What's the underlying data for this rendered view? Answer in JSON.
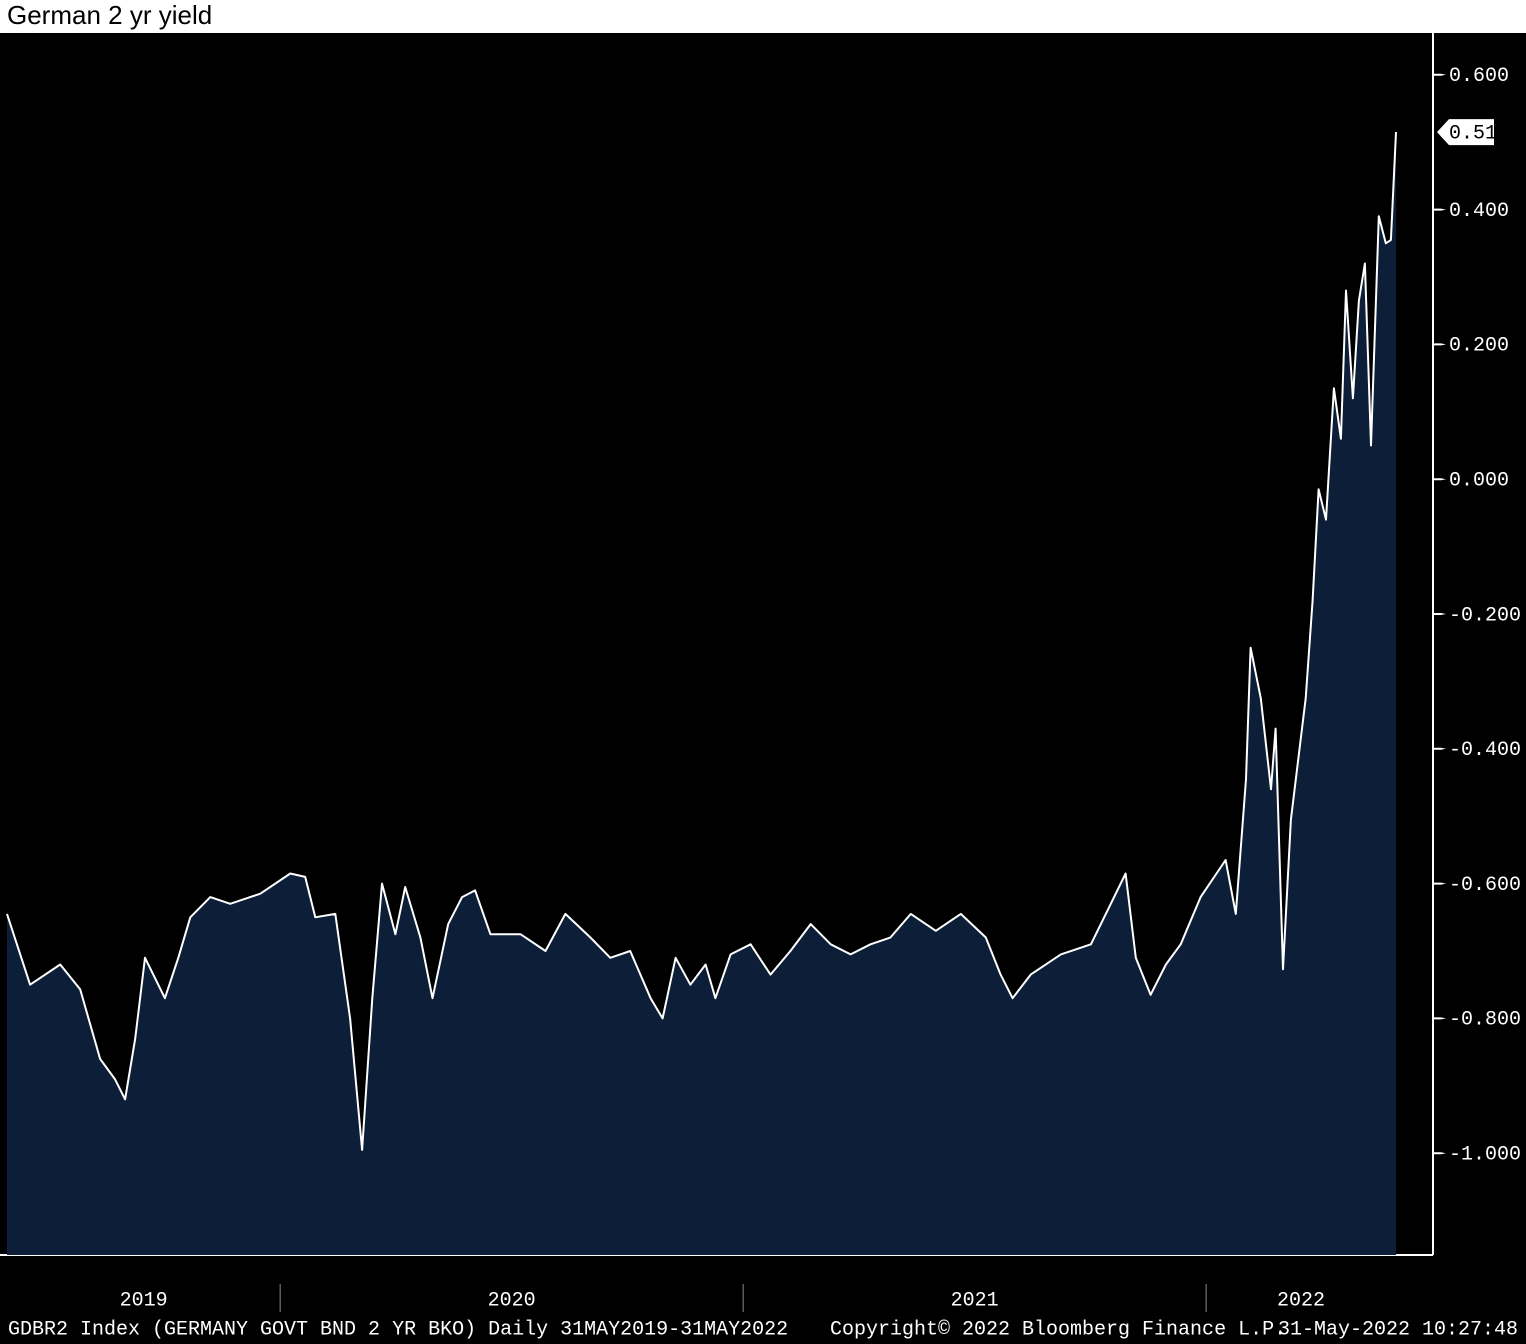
{
  "chart_data": {
    "type": "area",
    "title": "German 2 yr yield",
    "footer": [
      "GDBR2 Index (GERMANY GOVT BND 2 YR BKO)  Daily 31MAY2019-31MAY2022",
      "Copyright© 2022 Bloomberg Finance L.P.",
      "31-May-2022 10:27:48"
    ],
    "x": [
      2019.41,
      2019.46,
      2019.525,
      2019.568,
      2019.611,
      2019.643,
      2019.665,
      2019.687,
      2019.708,
      2019.751,
      2019.78,
      2019.806,
      2019.849,
      2019.892,
      2019.957,
      2020.022,
      2020.054,
      2020.076,
      2020.119,
      2020.151,
      2020.177,
      2020.199,
      2020.22,
      2020.249,
      2020.27,
      2020.303,
      2020.329,
      2020.363,
      2020.393,
      2020.421,
      2020.454,
      2020.519,
      2020.573,
      2020.616,
      2020.67,
      2020.713,
      2020.756,
      2020.8,
      2020.826,
      2020.854,
      2020.886,
      2020.919,
      2020.94,
      2020.973,
      2021.016,
      2021.059,
      2021.102,
      2021.146,
      2021.189,
      2021.232,
      2021.275,
      2021.318,
      2021.362,
      2021.416,
      2021.47,
      2021.524,
      2021.556,
      2021.582,
      2021.621,
      2021.686,
      2021.751,
      2021.794,
      2021.826,
      2021.848,
      2021.88,
      2021.913,
      2021.945,
      2021.988,
      2022.042,
      2022.064,
      2022.086,
      2022.096,
      2022.118,
      2022.14,
      2022.15,
      2022.166,
      2022.183,
      2022.2,
      2022.215,
      2022.23,
      2022.243,
      2022.259,
      2022.276,
      2022.291,
      2022.302,
      2022.317,
      2022.33,
      2022.343,
      2022.356,
      2022.373,
      2022.388,
      2022.399,
      2022.41
    ],
    "series": [
      {
        "name": "GDBR2 Index",
        "color": "#ffffff",
        "fill": "#0c1e38",
        "values": [
          -0.645,
          -0.75,
          -0.72,
          -0.757,
          -0.86,
          -0.89,
          -0.92,
          -0.83,
          -0.71,
          -0.77,
          -0.71,
          -0.65,
          -0.62,
          -0.63,
          -0.615,
          -0.585,
          -0.59,
          -0.65,
          -0.645,
          -0.8,
          -0.995,
          -0.77,
          -0.6,
          -0.675,
          -0.605,
          -0.68,
          -0.77,
          -0.66,
          -0.62,
          -0.61,
          -0.675,
          -0.675,
          -0.7,
          -0.645,
          -0.68,
          -0.71,
          -0.7,
          -0.77,
          -0.8,
          -0.71,
          -0.75,
          -0.72,
          -0.77,
          -0.705,
          -0.69,
          -0.735,
          -0.7,
          -0.66,
          -0.69,
          -0.705,
          -0.69,
          -0.68,
          -0.645,
          -0.67,
          -0.645,
          -0.68,
          -0.735,
          -0.77,
          -0.735,
          -0.705,
          -0.69,
          -0.63,
          -0.585,
          -0.71,
          -0.765,
          -0.72,
          -0.69,
          -0.62,
          -0.565,
          -0.645,
          -0.445,
          -0.25,
          -0.325,
          -0.46,
          -0.37,
          -0.727,
          -0.505,
          -0.41,
          -0.325,
          -0.18,
          -0.015,
          -0.06,
          0.135,
          0.06,
          0.28,
          0.12,
          0.265,
          0.32,
          0.05,
          0.39,
          0.35,
          0.355,
          0.515
        ]
      }
    ],
    "last_value_label": "0.515",
    "xlim": [
      2019.41,
      2022.49
    ],
    "xticks": [
      2020,
      2021,
      2022
    ],
    "year_labels": [
      "2019",
      "2020",
      "2021",
      "2022"
    ],
    "ylim": [
      -1.151,
      0.662
    ],
    "yticks": [
      {
        "value": 0.6,
        "label": "0.600"
      },
      {
        "value": 0.4,
        "label": "0.400"
      },
      {
        "value": 0.2,
        "label": "0.200"
      },
      {
        "value": 0,
        "label": "0.000"
      },
      {
        "value": -0.2,
        "label": "-0.200"
      },
      {
        "value": -0.4,
        "label": "-0.400"
      },
      {
        "value": -0.6,
        "label": "-0.600"
      },
      {
        "value": -0.8,
        "label": "-0.800"
      },
      {
        "value": -1.0,
        "label": "-1.000"
      }
    ]
  }
}
